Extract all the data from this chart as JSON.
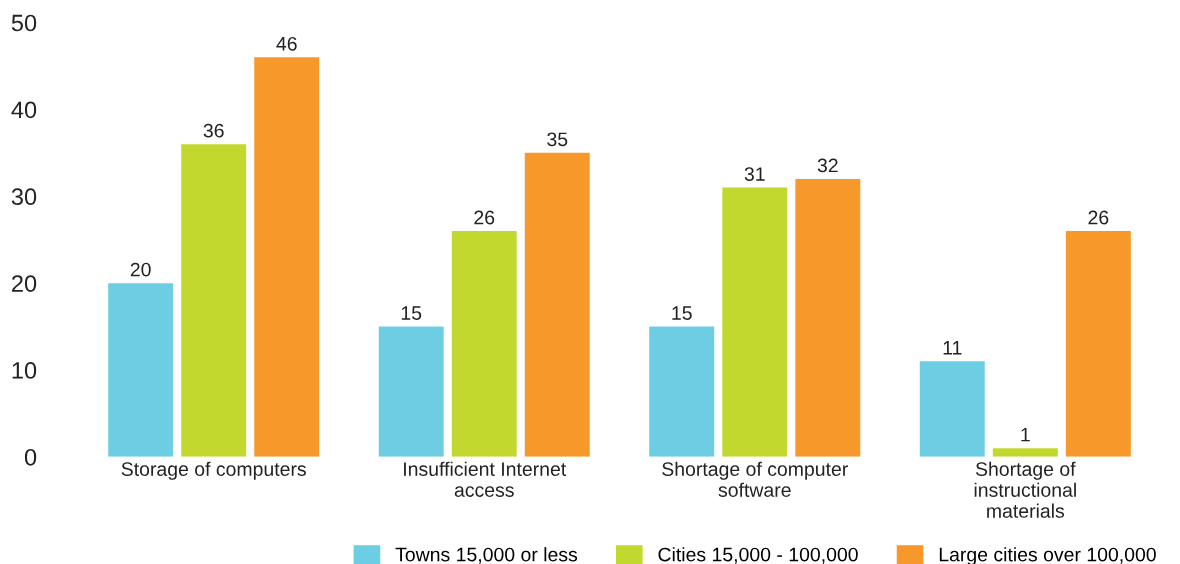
{
  "chart_data": {
    "type": "bar",
    "categories": [
      "Storage of computers",
      "Insufficient Internet access",
      "Shortage of computer software",
      "Shortage of instructional materials"
    ],
    "series": [
      {
        "name": "Towns 15,000 or less",
        "color": "#6dcee3",
        "values": [
          20,
          15,
          15,
          11
        ]
      },
      {
        "name": "Cities 15,000 - 100,000",
        "color": "#c3d82f",
        "values": [
          36,
          26,
          31,
          1
        ]
      },
      {
        "name": "Large cities over 100,000",
        "color": "#f7982a",
        "values": [
          46,
          35,
          32,
          26
        ]
      }
    ],
    "ylim": [
      0,
      50
    ],
    "yticks": [
      0,
      10,
      20,
      30,
      40,
      50
    ],
    "data_labels": true,
    "grid": false,
    "legend": "bottom right"
  }
}
